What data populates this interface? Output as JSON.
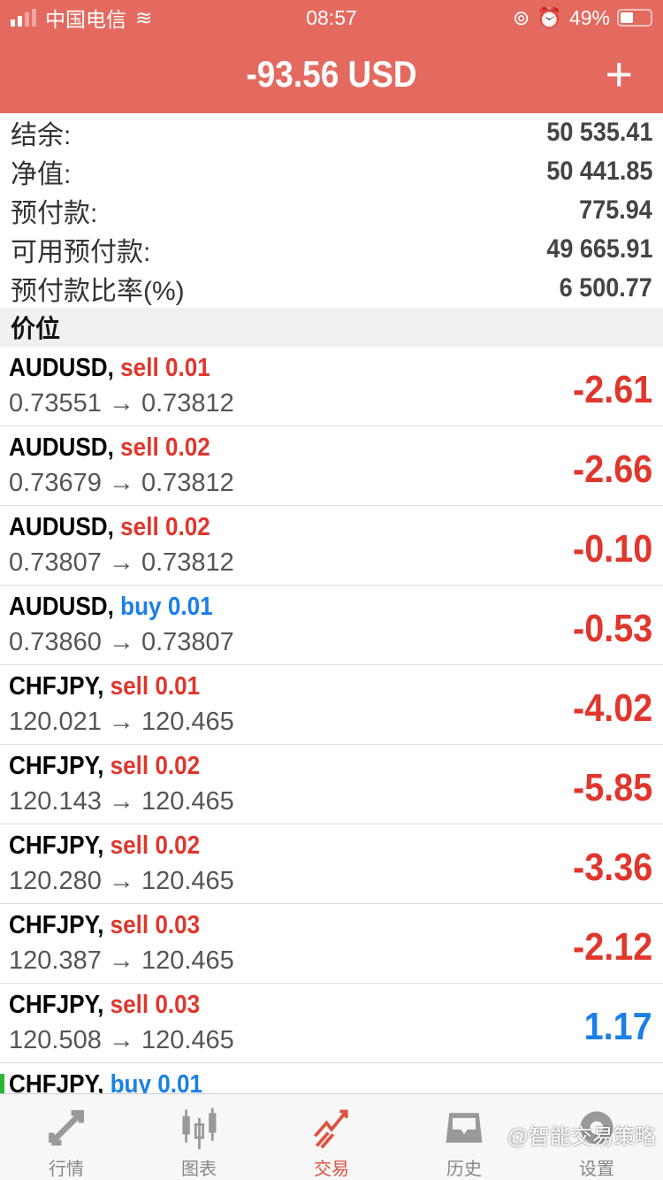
{
  "status_bar": {
    "carrier": "中国电信",
    "time": "08:57",
    "battery": "49%"
  },
  "header": {
    "title": "-93.56 USD",
    "add_label": "+"
  },
  "summary": [
    {
      "label": "结余:",
      "value": "50 535.41"
    },
    {
      "label": "净值:",
      "value": "50 441.85"
    },
    {
      "label": "预付款:",
      "value": "775.94"
    },
    {
      "label": "可用预付款:",
      "value": "49 665.91"
    },
    {
      "label": "预付款比率(%)",
      "value": "6 500.77"
    }
  ],
  "section_title": "价位",
  "positions": [
    {
      "symbol": "AUDUSD,",
      "side": "sell 0.01",
      "prices": "0.73551 → 0.73812",
      "profit": "-2.61"
    },
    {
      "symbol": "AUDUSD,",
      "side": "sell 0.02",
      "prices": "0.73679 → 0.73812",
      "profit": "-2.66"
    },
    {
      "symbol": "AUDUSD,",
      "side": "sell 0.02",
      "prices": "0.73807 → 0.73812",
      "profit": "-0.10"
    },
    {
      "symbol": "AUDUSD,",
      "side": "buy 0.01",
      "prices": "0.73860 → 0.73807",
      "profit": "-0.53"
    },
    {
      "symbol": "CHFJPY,",
      "side": "sell 0.01",
      "prices": "120.021 → 120.465",
      "profit": "-4.02"
    },
    {
      "symbol": "CHFJPY,",
      "side": "sell 0.02",
      "prices": "120.143 → 120.465",
      "profit": "-5.85"
    },
    {
      "symbol": "CHFJPY,",
      "side": "sell 0.02",
      "prices": "120.280 → 120.465",
      "profit": "-3.36"
    },
    {
      "symbol": "CHFJPY,",
      "side": "sell 0.03",
      "prices": "120.387 → 120.465",
      "profit": "-2.12"
    },
    {
      "symbol": "CHFJPY,",
      "side": "sell 0.03",
      "prices": "120.508 → 120.465",
      "profit": "1.17"
    },
    {
      "symbol": "CHFJPY,",
      "side": "buy 0.01",
      "prices": "",
      "profit": ""
    }
  ],
  "tabs": [
    {
      "label": "行情",
      "icon": "quotes-icon"
    },
    {
      "label": "图表",
      "icon": "chart-icon"
    },
    {
      "label": "交易",
      "icon": "trade-icon",
      "active": true
    },
    {
      "label": "历史",
      "icon": "history-icon"
    },
    {
      "label": "设置",
      "icon": "settings-icon"
    }
  ],
  "watermark": "@智能交易策略",
  "colors": {
    "header": "#E46A60",
    "loss": "#E0362C",
    "profit": "#1A7FE8"
  }
}
